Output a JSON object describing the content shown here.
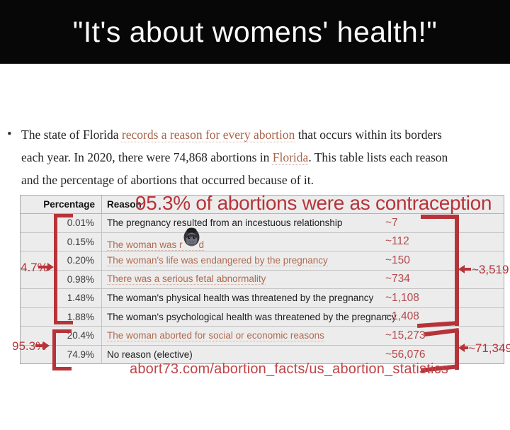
{
  "banner": {
    "title": "\"It's about womens' health!\""
  },
  "intro": {
    "bullet": "•",
    "lines": [
      [
        {
          "text": "The state of Florida "
        },
        {
          "text": "records a reason for every abortion",
          "link": true
        },
        {
          "text": " that occurs within its borders"
        }
      ],
      [
        {
          "text": "each year. In 2020, there were 74,868 abortions in "
        },
        {
          "text": "Florida",
          "link": true
        },
        {
          "text": ". This table lists each reason"
        }
      ],
      [
        {
          "text": "and the percentage of abortions that occurred because of it."
        }
      ]
    ]
  },
  "table": {
    "headers": {
      "percentage": "Percentage",
      "reason": "Reason"
    },
    "rows": [
      {
        "percentage": "0.01%",
        "reason": "The pregnancy resulted from an incestuous relationship",
        "link": false,
        "count": "~7"
      },
      {
        "percentage": "0.15%",
        "reason_parts": [
          {
            "text": "The woman was r"
          },
          {
            "icon": "gorilla"
          },
          {
            "text": "d"
          }
        ],
        "link": true,
        "count": "~112"
      },
      {
        "percentage": "0.20%",
        "reason": "The woman's life was endangered by the pregnancy",
        "link": true,
        "count": "~150"
      },
      {
        "percentage": "0.98%",
        "reason": "There was a serious fetal abnormality",
        "link": true,
        "count": "~734"
      },
      {
        "percentage": "1.48%",
        "reason": "The woman's physical health was threatened by the pregnancy",
        "link": false,
        "count": "~1,108"
      },
      {
        "percentage": "1.88%",
        "reason": "The woman's psychological health was threatened by the pregnancy",
        "link": false,
        "count": "~1,408"
      },
      {
        "percentage": "20.4%",
        "reason": "The woman aborted for social or economic reasons",
        "link": true,
        "count": "~15,273"
      },
      {
        "percentage": "74.9%",
        "reason": "No reason (elective)",
        "link": false,
        "count": "~56,076"
      }
    ]
  },
  "annotations": {
    "headline": "95.3% of abortions were as contraception",
    "left_bracket_small": {
      "label": "4.7%"
    },
    "left_bracket_large": {
      "label": "95.3%"
    },
    "right_bracket_small": {
      "label": "~3,519"
    },
    "right_bracket_large": {
      "label": "~71,349"
    },
    "source_url": "abort73.com/abortion_facts/us_abortion_statistics",
    "annotation_red": "#b63439",
    "count_red": "#b5484c",
    "link_orange": "#b06a4e"
  }
}
